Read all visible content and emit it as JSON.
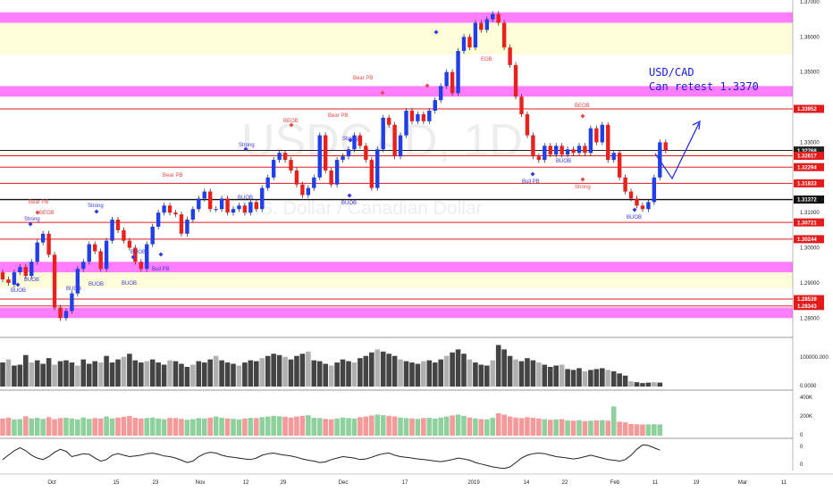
{
  "chart_data": {
    "type": "candlestick",
    "symbol": "USDCAD, 1D",
    "description": "U.S. Dollar / Canadian Dollar",
    "ylim": [
      1.276,
      1.3705
    ],
    "price_ticks": [
      {
        "v": 1.37,
        "label": "1.37000"
      },
      {
        "v": 1.36,
        "label": "1.36000"
      },
      {
        "v": 1.35,
        "label": "1.35000"
      },
      {
        "v": 1.33,
        "label": "1.33000"
      },
      {
        "v": 1.31,
        "label": "1.31000"
      },
      {
        "v": 1.3,
        "label": "1.30000"
      },
      {
        "v": 1.29,
        "label": "1.29000"
      },
      {
        "v": 1.28,
        "label": "1.28000"
      }
    ],
    "levels": [
      {
        "v": 1.33952,
        "label": "1.33952",
        "color": "#e31b1b"
      },
      {
        "v": 1.32768,
        "label": "1.32768",
        "color": "#222222"
      },
      {
        "v": 1.32617,
        "label": "1.32617",
        "color": "#e31b1b"
      },
      {
        "v": 1.32294,
        "label": "1.32294",
        "color": "#e31b1b"
      },
      {
        "v": 1.31833,
        "label": "1.31833",
        "color": "#e31b1b"
      },
      {
        "v": 1.31372,
        "label": "1.31372",
        "color": "#111111"
      },
      {
        "v": 1.30721,
        "label": "1.30721",
        "color": "#e31b1b"
      },
      {
        "v": 1.30244,
        "label": "1.30244",
        "color": "#e31b1b"
      },
      {
        "v": 1.28539,
        "label": "1.28539",
        "color": "#e31b1b"
      },
      {
        "v": 1.28343,
        "label": "1.28343",
        "color": "#e31b1b"
      }
    ],
    "zones": [
      {
        "from": 1.364,
        "to": 1.367,
        "color": "#ff66ff"
      },
      {
        "from": 1.355,
        "to": 1.364,
        "color": "#fffbd2"
      },
      {
        "from": 1.343,
        "to": 1.346,
        "color": "#ff66ff"
      },
      {
        "from": 1.293,
        "to": 1.296,
        "color": "#ff66ff"
      },
      {
        "from": 1.2885,
        "to": 1.293,
        "color": "#fffbd2"
      },
      {
        "from": 1.28,
        "to": 1.283,
        "color": "#ff66ff"
      }
    ],
    "x_labels": [
      "Oct",
      "15",
      "23",
      "Nov",
      "12",
      "29",
      "Dec",
      "17",
      "2019",
      "14",
      "22",
      "Feb",
      "11",
      "19",
      "Mar",
      "11"
    ],
    "candles": [
      [
        1.293,
        1.291
      ],
      [
        1.291,
        1.29
      ],
      [
        1.2895,
        1.293
      ],
      [
        1.293,
        1.2945
      ],
      [
        1.2945,
        1.292
      ],
      [
        1.292,
        1.296
      ],
      [
        1.296,
        1.3015
      ],
      [
        1.3015,
        1.304
      ],
      [
        1.304,
        1.298
      ],
      [
        1.298,
        1.283
      ],
      [
        1.283,
        1.28
      ],
      [
        1.28,
        1.282
      ],
      [
        1.282,
        1.287
      ],
      [
        1.287,
        1.294
      ],
      [
        1.294,
        1.296
      ],
      [
        1.296,
        1.301
      ],
      [
        1.301,
        1.299
      ],
      [
        1.299,
        1.294
      ],
      [
        1.294,
        1.302
      ],
      [
        1.302,
        1.308
      ],
      [
        1.308,
        1.305
      ],
      [
        1.305,
        1.302
      ],
      [
        1.302,
        1.3
      ],
      [
        1.3,
        1.296
      ],
      [
        1.296,
        1.294
      ],
      [
        1.294,
        1.301
      ],
      [
        1.301,
        1.306
      ],
      [
        1.306,
        1.31
      ],
      [
        1.31,
        1.312
      ],
      [
        1.312,
        1.31
      ],
      [
        1.31,
        1.3095
      ],
      [
        1.3095,
        1.304
      ],
      [
        1.304,
        1.308
      ],
      [
        1.308,
        1.311
      ],
      [
        1.311,
        1.314
      ],
      [
        1.314,
        1.316
      ],
      [
        1.316,
        1.311
      ],
      [
        1.311,
        1.311
      ],
      [
        1.311,
        1.314
      ],
      [
        1.314,
        1.31
      ],
      [
        1.31,
        1.311
      ],
      [
        1.311,
        1.312
      ],
      [
        1.312,
        1.31
      ],
      [
        1.31,
        1.313
      ],
      [
        1.313,
        1.311
      ],
      [
        1.311,
        1.317
      ],
      [
        1.317,
        1.32
      ],
      [
        1.32,
        1.325
      ],
      [
        1.325,
        1.327
      ],
      [
        1.327,
        1.325
      ],
      [
        1.325,
        1.322
      ],
      [
        1.322,
        1.318
      ],
      [
        1.318,
        1.315
      ],
      [
        1.315,
        1.317
      ],
      [
        1.317,
        1.32
      ],
      [
        1.32,
        1.332
      ],
      [
        1.332,
        1.322
      ],
      [
        1.322,
        1.318
      ],
      [
        1.318,
        1.325
      ],
      [
        1.325,
        1.326
      ],
      [
        1.326,
        1.328
      ],
      [
        1.328,
        1.332
      ],
      [
        1.332,
        1.329
      ],
      [
        1.329,
        1.325
      ],
      [
        1.325,
        1.317
      ],
      [
        1.317,
        1.328
      ],
      [
        1.328,
        1.337
      ],
      [
        1.337,
        1.335
      ],
      [
        1.335,
        1.326
      ],
      [
        1.326,
        1.332
      ],
      [
        1.332,
        1.339
      ],
      [
        1.339,
        1.336
      ],
      [
        1.336,
        1.338
      ],
      [
        1.338,
        1.336
      ],
      [
        1.336,
        1.339
      ],
      [
        1.339,
        1.342
      ],
      [
        1.342,
        1.346
      ],
      [
        1.346,
        1.35
      ],
      [
        1.35,
        1.344
      ],
      [
        1.344,
        1.356
      ],
      [
        1.356,
        1.36
      ],
      [
        1.36,
        1.357
      ],
      [
        1.357,
        1.364
      ],
      [
        1.364,
        1.362
      ],
      [
        1.362,
        1.365
      ],
      [
        1.365,
        1.3665
      ],
      [
        1.3665,
        1.364
      ],
      [
        1.364,
        1.357
      ],
      [
        1.357,
        1.352
      ],
      [
        1.352,
        1.343
      ],
      [
        1.343,
        1.338
      ],
      [
        1.338,
        1.332
      ],
      [
        1.332,
        1.326
      ],
      [
        1.326,
        1.325
      ],
      [
        1.325,
        1.329
      ],
      [
        1.329,
        1.3265
      ],
      [
        1.3265,
        1.329
      ],
      [
        1.329,
        1.3265
      ],
      [
        1.3265,
        1.328
      ],
      [
        1.328,
        1.327
      ],
      [
        1.327,
        1.329
      ],
      [
        1.329,
        1.327
      ],
      [
        1.327,
        1.334
      ],
      [
        1.334,
        1.33
      ],
      [
        1.33,
        1.335
      ],
      [
        1.335,
        1.325
      ],
      [
        1.325,
        1.327
      ],
      [
        1.327,
        1.32
      ],
      [
        1.32,
        1.316
      ],
      [
        1.316,
        1.314
      ],
      [
        1.314,
        1.312
      ],
      [
        1.312,
        1.311
      ],
      [
        1.311,
        1.313
      ],
      [
        1.313,
        1.32
      ],
      [
        1.32,
        1.33
      ],
      [
        1.33,
        1.3277
      ]
    ],
    "volume": [
      0.55,
      0.62,
      0.48,
      0.5,
      0.72,
      0.55,
      0.6,
      0.52,
      0.65,
      0.5,
      0.58,
      0.6,
      0.55,
      0.48,
      0.62,
      0.52,
      0.58,
      0.55,
      0.7,
      0.55,
      0.62,
      0.68,
      0.75,
      0.6,
      0.55,
      0.58,
      0.62,
      0.55,
      0.5,
      0.6,
      0.58,
      0.52,
      0.45,
      0.5,
      0.58,
      0.55,
      0.62,
      0.7,
      0.6,
      0.55,
      0.52,
      0.48,
      0.55,
      0.6,
      0.58,
      0.65,
      0.7,
      0.75,
      0.72,
      0.68,
      0.62,
      0.7,
      0.75,
      0.8,
      0.6,
      0.58,
      0.52,
      0.48,
      0.55,
      0.62,
      0.58,
      0.55,
      0.65,
      0.7,
      0.78,
      0.85,
      0.8,
      0.75,
      0.7,
      0.62,
      0.58,
      0.55,
      0.52,
      0.58,
      0.6,
      0.55,
      0.62,
      0.7,
      0.78,
      0.85,
      0.75,
      0.62,
      0.55,
      0.5,
      0.48,
      0.6,
      0.95,
      0.85,
      0.7,
      0.62,
      0.58,
      0.65,
      0.6,
      0.55,
      0.5,
      0.45,
      0.48,
      0.5,
      0.4,
      0.38,
      0.42,
      0.35,
      0.38,
      0.4,
      0.42,
      0.38,
      0.35,
      0.3,
      0.25,
      0.12,
      0.1,
      0.08,
      0.09,
      0.1,
      0.09
    ],
    "vol_axis": [
      "100000.000",
      "0.0000"
    ],
    "osc": [
      0.4,
      0.55,
      0.7,
      0.8,
      0.7,
      0.55,
      0.45,
      0.4,
      0.5,
      0.65,
      0.75,
      0.68,
      0.5,
      0.55,
      0.6,
      0.58,
      0.45,
      0.35,
      0.4,
      0.55,
      0.6,
      0.55,
      0.5,
      0.52,
      0.55,
      0.6,
      0.62,
      0.58,
      0.52,
      0.5,
      0.45,
      0.38,
      0.3,
      0.35,
      0.5,
      0.6,
      0.65,
      0.62,
      0.55,
      0.5,
      0.48,
      0.45,
      0.42,
      0.4,
      0.45,
      0.55,
      0.6,
      0.62,
      0.58,
      0.55,
      0.52,
      0.48,
      0.42,
      0.38,
      0.35,
      0.3,
      0.32,
      0.4,
      0.45,
      0.5,
      0.48,
      0.45,
      0.4,
      0.42,
      0.48,
      0.55,
      0.6,
      0.62,
      0.55,
      0.5,
      0.48,
      0.45,
      0.42,
      0.4,
      0.38,
      0.35,
      0.33,
      0.36,
      0.4,
      0.45,
      0.42,
      0.38,
      0.3,
      0.25,
      0.2,
      0.15,
      0.12,
      0.1,
      0.15,
      0.3,
      0.45,
      0.55,
      0.6,
      0.62,
      0.6,
      0.55,
      0.5,
      0.48,
      0.45,
      0.42,
      0.45,
      0.5,
      0.55,
      0.5,
      0.45,
      0.4,
      0.38,
      0.35,
      0.4,
      0.55,
      0.75,
      0.9,
      0.88,
      0.8,
      0.72
    ],
    "osc_axis": [
      "0",
      "0"
    ],
    "rvol_axis": [
      "400K",
      "200K",
      "0"
    ]
  },
  "note": {
    "line1": "USD/CAD",
    "line2": "Can retest 1.3370"
  },
  "watermark": {
    "symbol": "USDCAD, 1D",
    "desc": "U.S. Dollar / Canadian Dollar"
  },
  "annotations": [
    {
      "text": "Bear PB",
      "color": "#e84a4a"
    },
    {
      "text": "BEOB",
      "color": "#e84a4a"
    },
    {
      "text": "Strong",
      "color": "#3a3ad6"
    },
    {
      "text": "BUOB",
      "color": "#3a3ad6"
    },
    {
      "text": "Bull PB",
      "color": "#3a3ad6"
    },
    {
      "text": "EOB",
      "color": "#e84a4a"
    },
    {
      "text": "Strong",
      "color": "#e84a4a"
    }
  ]
}
